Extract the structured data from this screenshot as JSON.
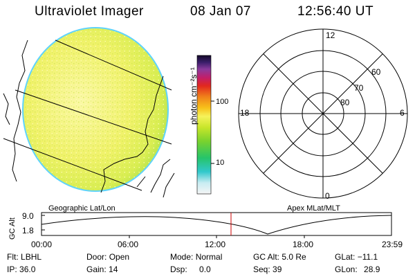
{
  "header": {
    "instrument": "Ultraviolet Imager",
    "date": "08 Jan 07",
    "time": "12:56:40 UT"
  },
  "colorbar": {
    "unit_label": "photon cm⁻²s⁻¹",
    "ticks": [
      "100",
      "10"
    ]
  },
  "image_panel": {
    "caption": "Geographic Lat/Lon"
  },
  "polar_plot": {
    "caption": "Apex MLat/MLT",
    "mlt_labels": {
      "top": "12",
      "left": "18",
      "right": "6",
      "bottom": "0"
    },
    "lat_labels": [
      "60",
      "70",
      "80"
    ]
  },
  "altitude_plot": {
    "y_label": "GC Alt",
    "y_ticks": [
      "9.0",
      "1.8"
    ],
    "x_ticks": [
      "00:00",
      "06:00",
      "12:00",
      "18:00",
      "23:59"
    ],
    "marker_time": "12:56:40"
  },
  "status": {
    "flt": {
      "label": "Flt:",
      "value": "LBHL"
    },
    "ip": {
      "label": "IP:",
      "value": "36.0"
    },
    "door": {
      "label": "Door:",
      "value": "Open"
    },
    "gain": {
      "label": "Gain:",
      "value": "14"
    },
    "mode": {
      "label": "Mode:",
      "value": "Normal"
    },
    "dsp": {
      "label": "Dsp:",
      "value": "0.0"
    },
    "gcalt": {
      "label": "GC Alt:",
      "value": "5.0 Re"
    },
    "seq": {
      "label": "Seq:",
      "value": "39"
    },
    "glat": {
      "label": "GLat:",
      "value": "−11.1"
    },
    "glon": {
      "label": "GLon:",
      "value": "28.9"
    }
  },
  "colors": {
    "marker": "#cc0000",
    "disk_edge": "#5fd3ff",
    "disk_fill": "#ecf05a"
  }
}
